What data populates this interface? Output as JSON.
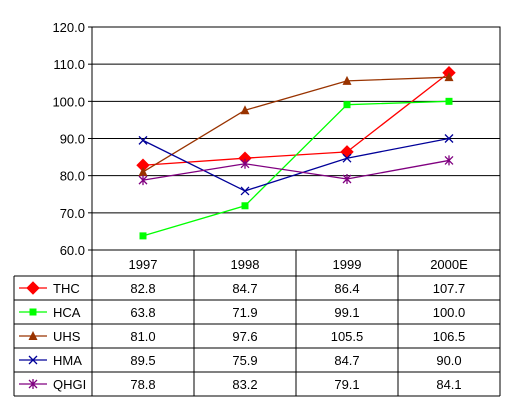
{
  "chart_data": {
    "type": "line",
    "categories": [
      "1997",
      "1998",
      "1999",
      "2000E"
    ],
    "ylim": [
      60,
      120
    ],
    "yticks": [
      "60.0",
      "70.0",
      "80.0",
      "90.0",
      "100.0",
      "110.0",
      "120.0"
    ],
    "grid": true,
    "legend": "data-table-below",
    "series": [
      {
        "name": "THC",
        "color": "#ff0000",
        "marker": "diamond",
        "values": [
          82.8,
          84.7,
          86.4,
          107.7
        ],
        "labels": [
          "82.8",
          "84.7",
          "86.4",
          "107.7"
        ]
      },
      {
        "name": "HCA",
        "color": "#00ff00",
        "marker": "square",
        "values": [
          63.8,
          71.9,
          99.1,
          100.0
        ],
        "labels": [
          "63.8",
          "71.9",
          "99.1",
          "100.0"
        ]
      },
      {
        "name": "UHS",
        "color": "#993300",
        "marker": "triangle",
        "values": [
          81.0,
          97.6,
          105.5,
          106.5
        ],
        "labels": [
          "81.0",
          "97.6",
          "105.5",
          "106.5"
        ]
      },
      {
        "name": "HMA",
        "color": "#000099",
        "marker": "x",
        "values": [
          89.5,
          75.9,
          84.7,
          90.0
        ],
        "labels": [
          "89.5",
          "75.9",
          "84.7",
          "90.0"
        ]
      },
      {
        "name": "QHGI",
        "color": "#800080",
        "marker": "star",
        "values": [
          78.8,
          83.2,
          79.1,
          84.1
        ],
        "labels": [
          "78.8",
          "83.2",
          "79.1",
          "84.1"
        ]
      }
    ]
  }
}
